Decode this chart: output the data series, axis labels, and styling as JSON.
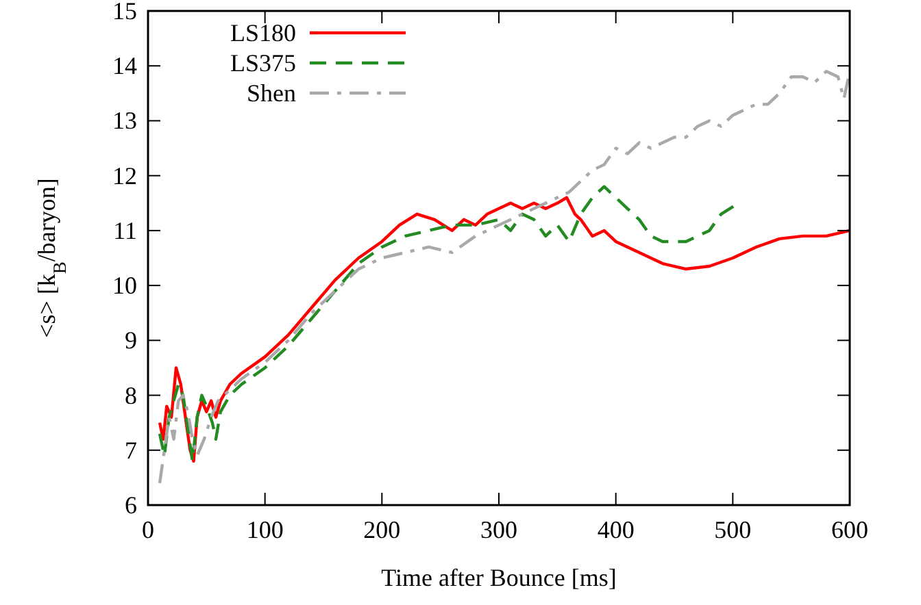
{
  "chart_data": {
    "type": "line",
    "xlabel": "Time after Bounce [ms]",
    "ylabel": "<s> [k$_{B}$/baryon]",
    "xlim": [
      0,
      600
    ],
    "xticks": [
      0,
      100,
      200,
      300,
      400,
      500,
      600
    ],
    "ylim": [
      6,
      15
    ],
    "yticks": [
      6,
      7,
      8,
      9,
      10,
      11,
      12,
      13,
      14,
      15
    ],
    "legend": "top left",
    "grid": false,
    "series": [
      {
        "name": "LS180",
        "color": "#ff0000",
        "line_style": "solid",
        "x": [
          10,
          13,
          16,
          20,
          24,
          28,
          32,
          36,
          39,
          42,
          46,
          50,
          54,
          58,
          62,
          70,
          80,
          100,
          120,
          140,
          160,
          180,
          200,
          215,
          230,
          245,
          260,
          270,
          280,
          290,
          300,
          310,
          320,
          330,
          340,
          350,
          358,
          365,
          370,
          380,
          390,
          400,
          420,
          440,
          460,
          480,
          500,
          520,
          540,
          560,
          580,
          600
        ],
        "values": [
          7.5,
          7.2,
          7.8,
          7.6,
          8.5,
          8.2,
          7.6,
          7.0,
          6.8,
          7.6,
          7.9,
          7.7,
          7.9,
          7.6,
          7.9,
          8.2,
          8.4,
          8.7,
          9.1,
          9.6,
          10.1,
          10.5,
          10.8,
          11.1,
          11.3,
          11.2,
          11.0,
          11.2,
          11.1,
          11.3,
          11.4,
          11.5,
          11.4,
          11.5,
          11.4,
          11.5,
          11.6,
          11.3,
          11.2,
          10.9,
          11.0,
          10.8,
          10.6,
          10.4,
          10.3,
          10.35,
          10.5,
          10.7,
          10.85,
          10.9,
          10.9,
          11.0
        ]
      },
      {
        "name": "LS375",
        "color": "#228b22",
        "line_style": "dashed",
        "x": [
          10,
          14,
          18,
          22,
          26,
          30,
          34,
          38,
          42,
          46,
          50,
          55,
          58,
          62,
          70,
          80,
          100,
          120,
          140,
          160,
          180,
          200,
          220,
          240,
          260,
          280,
          300,
          310,
          320,
          330,
          340,
          350,
          360,
          370,
          380,
          390,
          400,
          410,
          420,
          430,
          440,
          460,
          470,
          480,
          490,
          505
        ],
        "values": [
          7.3,
          6.9,
          7.6,
          7.9,
          8.2,
          8.0,
          7.4,
          6.8,
          7.6,
          8.0,
          7.8,
          7.5,
          7.2,
          7.7,
          8.0,
          8.2,
          8.5,
          8.9,
          9.4,
          9.9,
          10.4,
          10.7,
          10.9,
          11.0,
          11.1,
          11.1,
          11.2,
          11.0,
          11.3,
          11.2,
          10.9,
          11.1,
          10.8,
          11.3,
          11.6,
          11.8,
          11.6,
          11.4,
          11.2,
          10.9,
          10.8,
          10.8,
          10.9,
          11.0,
          11.3,
          11.5
        ]
      },
      {
        "name": "Shen",
        "color": "#a9a9a9",
        "line_style": "dashdot",
        "x": [
          10,
          14,
          18,
          22,
          26,
          30,
          34,
          38,
          42,
          48,
          54,
          60,
          70,
          80,
          100,
          120,
          140,
          160,
          180,
          200,
          220,
          240,
          260,
          280,
          300,
          320,
          340,
          360,
          380,
          390,
          400,
          410,
          420,
          430,
          440,
          450,
          460,
          470,
          480,
          490,
          500,
          510,
          520,
          530,
          540,
          550,
          560,
          570,
          580,
          590,
          595,
          600
        ],
        "values": [
          6.4,
          7.0,
          7.6,
          7.2,
          7.9,
          8.0,
          7.7,
          7.2,
          6.9,
          7.2,
          7.6,
          7.9,
          8.1,
          8.3,
          8.6,
          9.0,
          9.5,
          9.9,
          10.3,
          10.5,
          10.6,
          10.7,
          10.6,
          10.9,
          11.1,
          11.3,
          11.5,
          11.7,
          12.1,
          12.2,
          12.5,
          12.4,
          12.6,
          12.5,
          12.6,
          12.7,
          12.7,
          12.9,
          13.0,
          12.9,
          13.1,
          13.2,
          13.3,
          13.3,
          13.5,
          13.8,
          13.8,
          13.7,
          13.9,
          13.8,
          13.4,
          13.9
        ]
      }
    ]
  }
}
